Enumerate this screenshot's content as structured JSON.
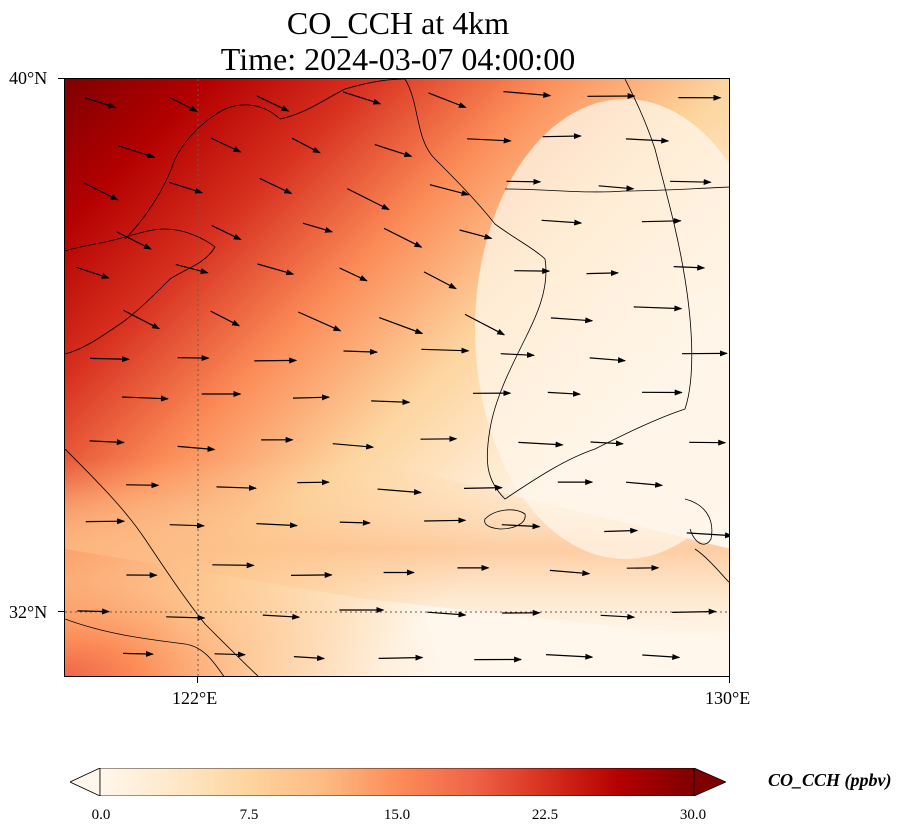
{
  "title": {
    "line1": "CO_CCH at 4km",
    "line2": "Time: 2024-03-07 04:00:00"
  },
  "axes": {
    "lat_ticks": [
      "40°N",
      "32°N"
    ],
    "lon_ticks": [
      "122°E",
      "130°E"
    ]
  },
  "map": {
    "lon_range": [
      120,
      130
    ],
    "lat_range": [
      31,
      40
    ],
    "gridlines": "dotted at 122°E and 32°N",
    "colormap": "OrRd",
    "field": "CO_CCH concentration, high in north-west (Bohai / Liaodong, Shandong), low over Yellow Sea and Korea, moderate band south of 34°N",
    "wind_arrows": "westerly to west-northwesterly flow over the whole domain"
  },
  "colorbar": {
    "label": "CO_CCH (ppbv)",
    "ticks": [
      "0.0",
      "7.5",
      "15.0",
      "22.5",
      "30.0"
    ],
    "min": 0,
    "max": 30,
    "extend": "both",
    "colors": [
      "#fff7ec",
      "#fee8c8",
      "#fdd49e",
      "#fdbb84",
      "#fc8d59",
      "#ef6548",
      "#d7301f",
      "#b30000",
      "#7f0000"
    ]
  }
}
